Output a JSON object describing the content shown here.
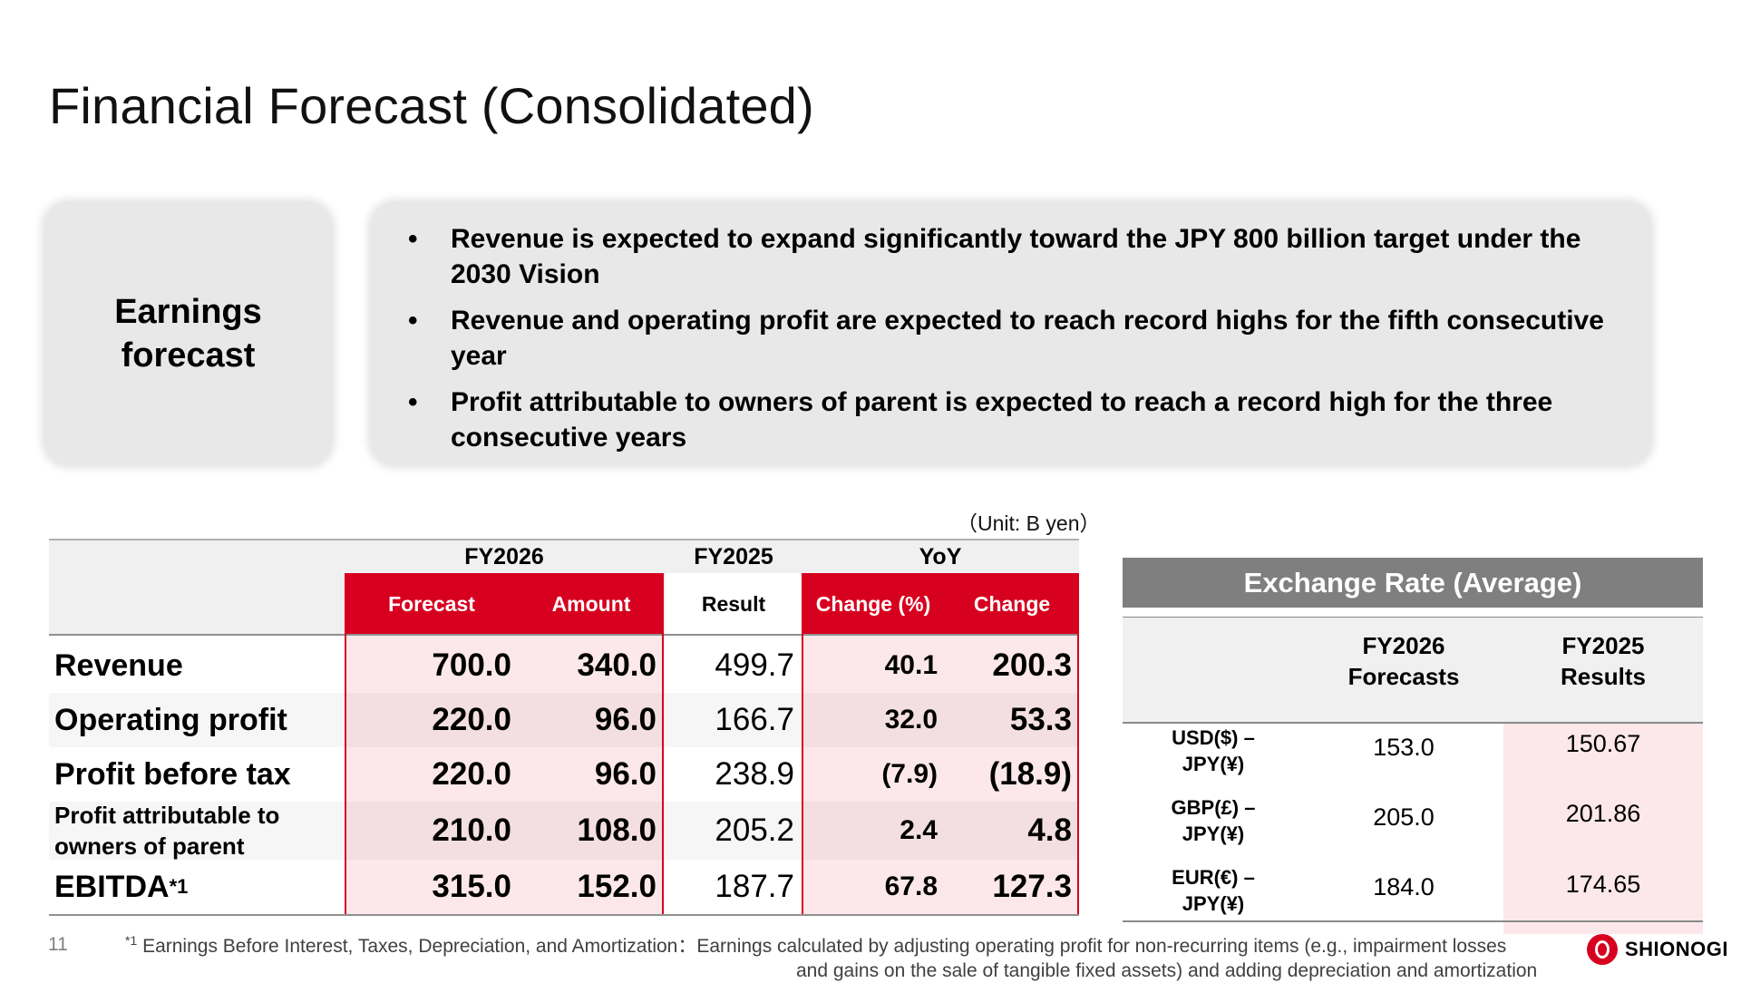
{
  "page": {
    "title": "Financial Forecast (Consolidated)",
    "page_number": "11"
  },
  "summary": {
    "label_line1": "Earnings",
    "label_line2": "forecast",
    "bullets": [
      "Revenue is expected to expand significantly toward the JPY 800 billion target under the 2030 Vision",
      "Revenue and operating profit are expected to reach record highs for the fifth consecutive year",
      "Profit attributable to owners of parent is expected to reach a record high for the  three consecutive years"
    ],
    "bullet_char": "•"
  },
  "forecast_table": {
    "unit": "（Unit: B yen）",
    "groups": [
      "FY2026",
      "FY2025",
      "YoY"
    ],
    "subheaders": [
      "Forecast",
      "Amount",
      "Result",
      "Change (%)",
      "Change"
    ],
    "rows": [
      {
        "label": "Revenue",
        "forecast": "700.0",
        "amount": "340.0",
        "result": "499.7",
        "change_pct": "40.1",
        "change": "200.3"
      },
      {
        "label": "Operating profit",
        "forecast": "220.0",
        "amount": "96.0",
        "result": "166.7",
        "change_pct": "32.0",
        "change": "53.3"
      },
      {
        "label": "Profit before tax",
        "forecast": "220.0",
        "amount": "96.0",
        "result": "238.9",
        "change_pct": "(7.9)",
        "change": "(18.9)"
      },
      {
        "label_line1": "Profit attributable to",
        "label_line2": "owners of parent",
        "forecast": "210.0",
        "amount": "108.0",
        "result": "205.2",
        "change_pct": "2.4",
        "change": "4.8"
      },
      {
        "label": "EBITDA",
        "label_sup": "*1",
        "forecast": "315.0",
        "amount": "152.0",
        "result": "187.7",
        "change_pct": "67.8",
        "change": "127.3"
      }
    ]
  },
  "exchange_table": {
    "title": "Exchange Rate (Average)",
    "col1_line1": "FY2026",
    "col1_line2": "Forecasts",
    "col2_line1": "FY2025",
    "col2_line2": "Results",
    "rows": [
      {
        "line1": "USD($) –",
        "line2": "JPY(¥)",
        "fy2026": "153.0",
        "fy2025": "150.67"
      },
      {
        "line1": "GBP(£) –",
        "line2": "JPY(¥)",
        "fy2026": "205.0",
        "fy2025": "201.86"
      },
      {
        "line1": "EUR(€) –",
        "line2": "JPY(¥)",
        "fy2026": "184.0",
        "fy2025": "174.65"
      }
    ]
  },
  "footnote": {
    "marker": "*1",
    "line1": "Earnings Before Interest, Taxes, Depreciation, and Amortization：Earnings calculated by adjusting operating profit for non-recurring items (e.g., impairment losses",
    "line2": "and gains on the sale of tangible fixed assets) and adding depreciation and amortization"
  },
  "logo": {
    "text": "SHIONOGI",
    "color": "#d7001f"
  },
  "colors": {
    "accent_red": "#d7001f",
    "pink_fill": "#fce8ea",
    "panel_gray": "#e8e8e8",
    "header_gray": "#7f7f7f"
  }
}
